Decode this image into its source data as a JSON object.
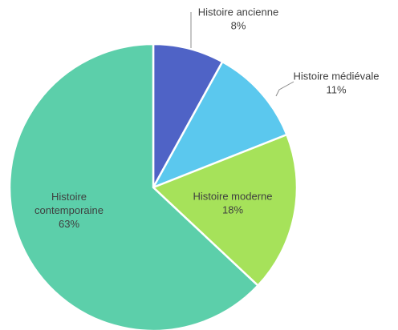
{
  "chart_data": {
    "type": "pie",
    "title": "",
    "start_angle_deg": 0,
    "direction": "clockwise",
    "slices": [
      {
        "label": "Histoire ancienne",
        "value": 8,
        "value_label": "8%",
        "color": "#4f63c6",
        "label_lines": [
          "Histoire ancienne"
        ],
        "label_placement": "outside"
      },
      {
        "label": "Histoire médiévale",
        "value": 11,
        "value_label": "11%",
        "color": "#5bc8ee",
        "label_lines": [
          "Histoire médiévale"
        ],
        "label_placement": "outside"
      },
      {
        "label": "Histoire moderne",
        "value": 18,
        "value_label": "18%",
        "color": "#a6e25a",
        "label_lines": [
          "Histoire moderne"
        ],
        "label_placement": "inside"
      },
      {
        "label": "Histoire contemporaine",
        "value": 63,
        "value_label": "63%",
        "color": "#5ccfaa",
        "label_lines": [
          "Histoire",
          "contemporaine"
        ],
        "label_placement": "inside"
      }
    ]
  }
}
